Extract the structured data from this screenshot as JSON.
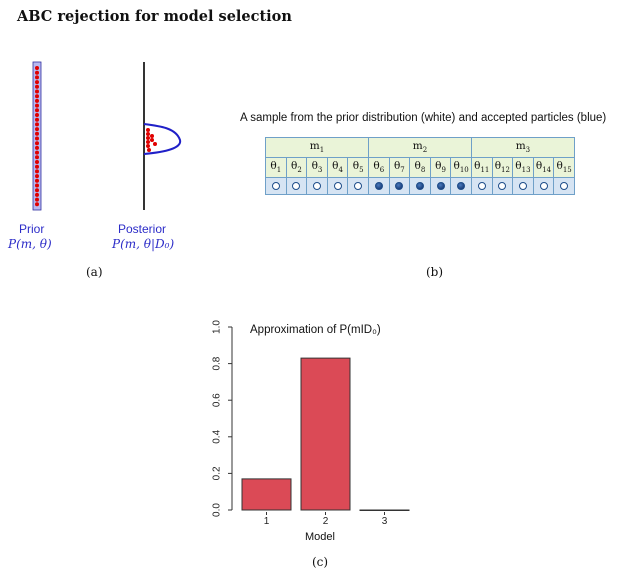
{
  "title": "ABC rejection for model selection",
  "panel_a": {
    "prior_label": "Prior",
    "prior_formula": "P(m, θ)",
    "posterior_label": "Posterior",
    "posterior_formula": "P(m, θ|D₀)",
    "tag": "(a)",
    "colors": {
      "dots": "#e00000",
      "curve": "#2020c8",
      "bar": "#b8b8f0"
    }
  },
  "panel_b": {
    "caption": "A sample from the prior distribution (white) and accepted particles (blue)",
    "models": [
      "m",
      "m",
      "m"
    ],
    "model_subs": [
      "1",
      "2",
      "3"
    ],
    "thetas": [
      "1",
      "2",
      "3",
      "4",
      "5",
      "6",
      "7",
      "8",
      "9",
      "10",
      "11",
      "12",
      "13",
      "14",
      "15"
    ],
    "accepted": [
      false,
      false,
      false,
      false,
      false,
      true,
      true,
      true,
      true,
      true,
      false,
      false,
      false,
      false,
      false
    ],
    "tag": "(b)"
  },
  "panel_c": {
    "tag": "(c)",
    "chart_data": {
      "type": "bar",
      "title": "Approximation of P(mID₀)",
      "categories": [
        "1",
        "2",
        "3"
      ],
      "values": [
        0.17,
        0.83,
        0.0
      ],
      "xlabel": "Model",
      "ylabel": "",
      "ylim": [
        0,
        1.0
      ],
      "yticks": [
        "0.0",
        "0.2",
        "0.4",
        "0.6",
        "0.8",
        "1.0"
      ],
      "bar_color": "#db4a56",
      "grid": false
    }
  }
}
